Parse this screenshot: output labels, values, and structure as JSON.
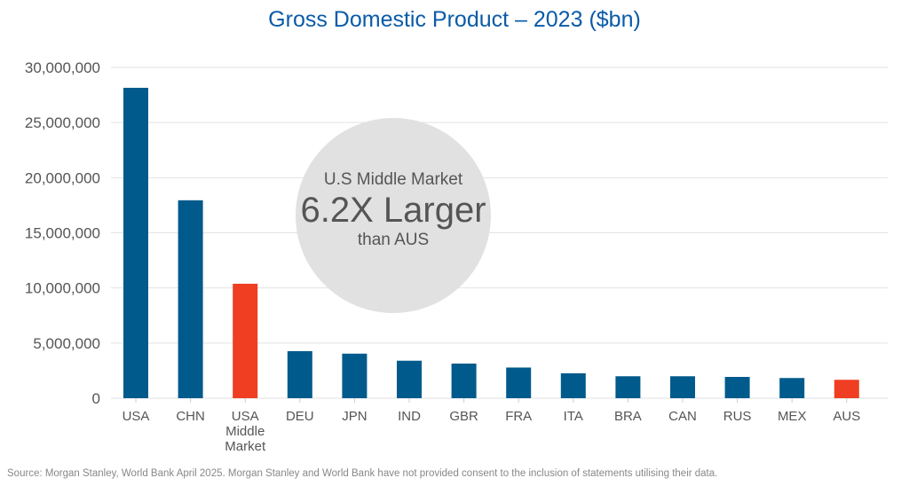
{
  "chart_data": {
    "type": "bar",
    "title": "Gross Domestic Product – 2023 ($bn)",
    "categories": [
      "USA",
      "CHN",
      "USA Middle Market",
      "DEU",
      "JPN",
      "IND",
      "GBR",
      "FRA",
      "ITA",
      "BRA",
      "CAN",
      "RUS",
      "MEX",
      "AUS"
    ],
    "category_lines": [
      [
        "USA"
      ],
      [
        "CHN"
      ],
      [
        "USA",
        "Middle",
        "Market"
      ],
      [
        "DEU"
      ],
      [
        "JPN"
      ],
      [
        "IND"
      ],
      [
        "GBR"
      ],
      [
        "FRA"
      ],
      [
        "ITA"
      ],
      [
        "BRA"
      ],
      [
        "CAN"
      ],
      [
        "RUS"
      ],
      [
        "MEX"
      ],
      [
        "AUS"
      ]
    ],
    "values": [
      28150000,
      17950000,
      10380000,
      4270000,
      4040000,
      3400000,
      3140000,
      2780000,
      2260000,
      1990000,
      1990000,
      1930000,
      1830000,
      1670000
    ],
    "highlight": [
      false,
      false,
      true,
      false,
      false,
      false,
      false,
      false,
      false,
      false,
      false,
      false,
      false,
      true
    ],
    "ylim": [
      0,
      30000000
    ],
    "yticks": [
      0,
      5000000,
      10000000,
      15000000,
      20000000,
      25000000,
      30000000
    ],
    "ytick_labels": [
      "0",
      "5,000,000",
      "10,000,000",
      "15,000,000",
      "20,000,000",
      "25,000,000",
      "30,000,000"
    ],
    "grid": true,
    "colors": {
      "bar": "#005a8c",
      "highlight": "#ef3e22",
      "title": "#0a5ba8",
      "callout": "#e1e1e1"
    },
    "annotation": {
      "line1": "U.S Middle Market",
      "line2": "6.2X Larger",
      "line3": "than AUS"
    }
  },
  "source": "Source: Morgan Stanley, World Bank April 2025. Morgan Stanley and World Bank have not provided consent to the inclusion of statements utilising their data."
}
